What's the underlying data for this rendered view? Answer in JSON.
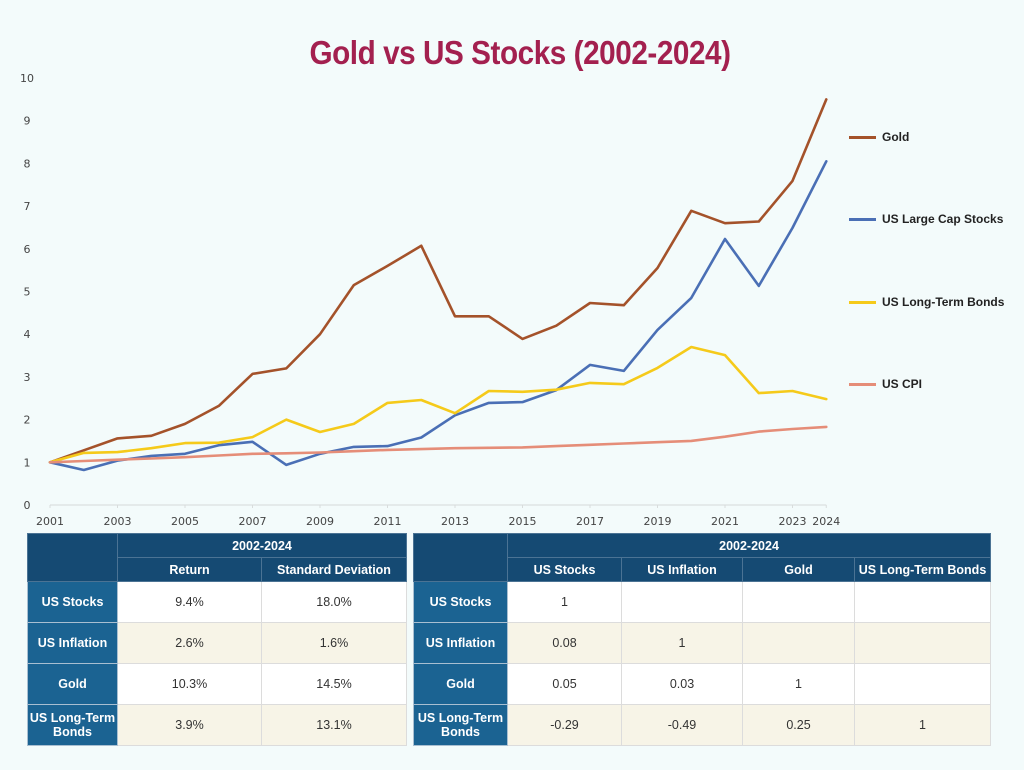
{
  "title": "Gold vs US Stocks (2002-2024)",
  "chart_data": {
    "type": "line",
    "title": "Gold vs US Stocks (2002-2024)",
    "xlabel": "",
    "ylabel": "",
    "x": [
      2001,
      2002,
      2003,
      2004,
      2005,
      2006,
      2007,
      2008,
      2009,
      2010,
      2011,
      2012,
      2013,
      2014,
      2015,
      2016,
      2017,
      2018,
      2019,
      2020,
      2021,
      2022,
      2023,
      2024
    ],
    "x_tick_labels": [
      "2001",
      "2003",
      "2005",
      "2007",
      "2009",
      "2011",
      "2013",
      "2015",
      "2017",
      "2019",
      "2021",
      "2023",
      "2024"
    ],
    "x_tick_values": [
      2001,
      2003,
      2005,
      2007,
      2009,
      2011,
      2013,
      2015,
      2017,
      2019,
      2021,
      2023,
      2024
    ],
    "ylim": [
      0,
      10
    ],
    "y_ticks": [
      0,
      1,
      2,
      3,
      4,
      5,
      6,
      7,
      8,
      9,
      10
    ],
    "grid": false,
    "legend_position": "right",
    "series": [
      {
        "name": "Gold",
        "color": "#a4522a",
        "values": [
          1.0,
          1.28,
          1.56,
          1.62,
          1.9,
          2.32,
          3.07,
          3.2,
          4.0,
          5.15,
          5.6,
          6.07,
          4.42,
          4.42,
          3.89,
          4.2,
          4.73,
          4.68,
          5.55,
          6.89,
          6.6,
          6.64,
          7.59,
          9.5
        ]
      },
      {
        "name": "US Large Cap Stocks",
        "color": "#4a6fb5",
        "values": [
          1.0,
          0.82,
          1.04,
          1.15,
          1.2,
          1.4,
          1.48,
          0.94,
          1.2,
          1.36,
          1.38,
          1.58,
          2.1,
          2.39,
          2.41,
          2.69,
          3.28,
          3.14,
          4.1,
          4.85,
          6.23,
          5.13,
          6.49,
          8.05
        ]
      },
      {
        "name": "US Long-Term Bonds",
        "color": "#f5ca1a",
        "values": [
          1.0,
          1.22,
          1.24,
          1.33,
          1.45,
          1.46,
          1.59,
          2.0,
          1.71,
          1.9,
          2.39,
          2.46,
          2.15,
          2.67,
          2.65,
          2.7,
          2.86,
          2.83,
          3.21,
          3.7,
          3.51,
          2.62,
          2.67,
          2.48
        ]
      },
      {
        "name": "US CPI",
        "color": "#e58d78",
        "values": [
          1.0,
          1.03,
          1.06,
          1.09,
          1.12,
          1.16,
          1.2,
          1.21,
          1.23,
          1.26,
          1.29,
          1.31,
          1.33,
          1.34,
          1.35,
          1.38,
          1.41,
          1.44,
          1.47,
          1.5,
          1.6,
          1.72,
          1.78,
          1.83
        ]
      }
    ]
  },
  "stats_table": {
    "period": "2002-2024",
    "columns": [
      "Return",
      "Standard Deviation"
    ],
    "rows": [
      {
        "label": "US Stocks",
        "values": [
          "9.4%",
          "18.0%"
        ]
      },
      {
        "label": "US Inflation",
        "values": [
          "2.6%",
          "1.6%"
        ]
      },
      {
        "label": "Gold",
        "values": [
          "10.3%",
          "14.5%"
        ]
      },
      {
        "label": "US Long-Term Bonds",
        "values": [
          "3.9%",
          "13.1%"
        ]
      }
    ]
  },
  "corr_table": {
    "period": "2002-2024",
    "columns": [
      "US Stocks",
      "US Inflation",
      "Gold",
      "US Long-Term Bonds"
    ],
    "rows": [
      {
        "label": "US Stocks",
        "values": [
          "1",
          "",
          "",
          ""
        ]
      },
      {
        "label": "US Inflation",
        "values": [
          "0.08",
          "1",
          "",
          ""
        ]
      },
      {
        "label": "Gold",
        "values": [
          "0.05",
          "0.03",
          "1",
          ""
        ]
      },
      {
        "label": "US Long-Term Bonds",
        "values": [
          "-0.29",
          "-0.49",
          "0.25",
          "1"
        ]
      }
    ]
  }
}
